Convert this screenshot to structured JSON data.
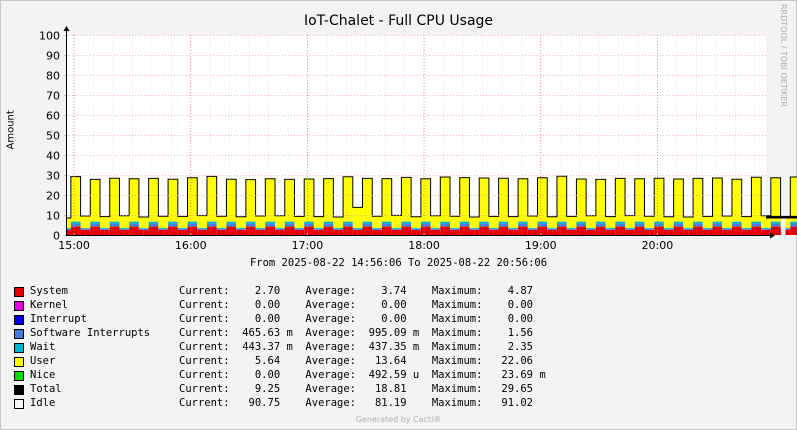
{
  "chart_data": {
    "type": "area",
    "title": "IoT-Chalet - Full CPU Usage",
    "ylabel": "Amount",
    "ylim": [
      0,
      100
    ],
    "yticks": [
      0,
      10,
      20,
      30,
      40,
      50,
      60,
      70,
      80,
      90,
      100
    ],
    "xlim": [
      "14:56:06",
      "20:56:06"
    ],
    "xticks": [
      "15:00",
      "16:00",
      "17:00",
      "18:00",
      "19:00",
      "20:00"
    ],
    "grid": true,
    "range_label": "From 2025-08-22 14:56:06 To 2025-08-22 20:56:06",
    "cycle_minutes": 10,
    "series": [
      {
        "name": "System",
        "color": "#e60000",
        "current": "2.70",
        "average": "3.74",
        "maximum": "4.87"
      },
      {
        "name": "Kernel",
        "color": "#e600e6",
        "current": "0.00",
        "average": "0.00",
        "maximum": "0.00"
      },
      {
        "name": "Interrupt",
        "color": "#0000e6",
        "current": "0.00",
        "average": "0.00",
        "maximum": "0.00"
      },
      {
        "name": "Software Interrupts",
        "color": "#4a7ce0",
        "current": "465.63 m",
        "average": "995.09 m",
        "maximum": "1.56"
      },
      {
        "name": "Wait",
        "color": "#00b5d0",
        "current": "443.37 m",
        "average": "437.35 m",
        "maximum": "2.35"
      },
      {
        "name": "User",
        "color": "#ffff00",
        "current": "5.64",
        "average": "13.64",
        "maximum": "22.06"
      },
      {
        "name": "Nice",
        "color": "#00e000",
        "current": "0.00",
        "average": "492.59 u",
        "maximum": "23.69 m"
      },
      {
        "name": "Total",
        "color": "#000000",
        "current": "9.25",
        "average": "18.81",
        "maximum": "29.65"
      },
      {
        "name": "Idle",
        "color": "#f5f5f5",
        "current": "90.75",
        "average": "81.19",
        "maximum": "91.02"
      }
    ],
    "total_peaks": [
      29.2,
      27.8,
      28.4,
      28.1,
      28.3,
      27.9,
      28.6,
      29.3,
      27.9,
      27.7,
      28.1,
      27.8,
      28.0,
      28.2,
      29.1,
      28.3,
      28.2,
      28.8,
      28.1,
      29.0,
      28.7,
      28.5,
      28.4,
      28.1,
      28.6,
      29.4,
      28.0,
      27.8,
      28.3,
      28.1,
      28.4,
      28.0,
      28.3,
      28.5,
      27.9,
      28.9,
      28.6,
      29.0,
      28.1,
      28.2
    ],
    "total_troughs": [
      8.5,
      9.5,
      9.2,
      9.6,
      9.0,
      9.4,
      9.3,
      9.7,
      9.4,
      9.1,
      9.5,
      9.6,
      9.3,
      9.2,
      9.0,
      13.8,
      9.4,
      9.8,
      9.1,
      9.6,
      9.4,
      9.0,
      9.3,
      9.2,
      9.5,
      9.1,
      9.3,
      9.6,
      9.2,
      9.7,
      9.4,
      9.1,
      9.0,
      9.3,
      9.5,
      9.2,
      9.6,
      9.3,
      9.0,
      9.3
    ]
  },
  "footer": "Generated by Cacti®",
  "watermark": "RRDTOOL / TOBI OETIKER",
  "legend": {
    "current_label": "Current:",
    "average_label": "Average:",
    "maximum_label": "Maximum:"
  }
}
